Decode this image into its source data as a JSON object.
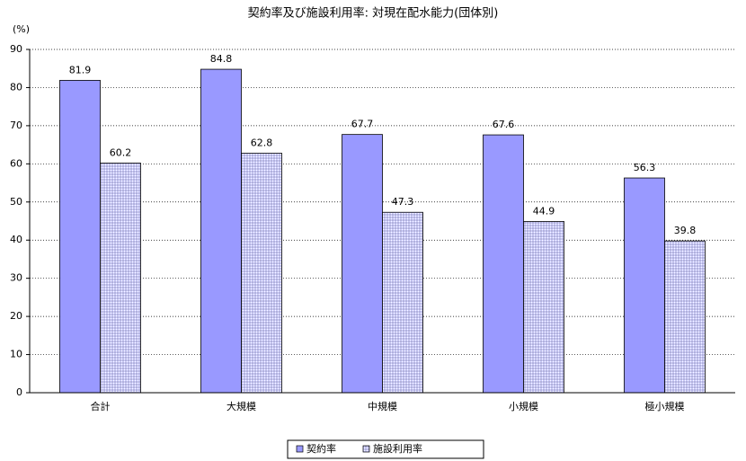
{
  "chart_data": {
    "type": "bar",
    "title": "契約率及び施設利用率: 対現在配水能力(団体別)",
    "y_label": "(%)",
    "categories": [
      "合計",
      "大規模",
      "中規模",
      "小規模",
      "極小規模"
    ],
    "series": [
      {
        "name": "契約率",
        "color": "#9999ff",
        "values": [
          81.9,
          84.8,
          67.7,
          67.6,
          56.3
        ]
      },
      {
        "name": "施設利用率",
        "color": "#ccccff",
        "pattern": "dots",
        "values": [
          60.2,
          62.8,
          47.3,
          44.9,
          39.8
        ]
      }
    ],
    "ylim": [
      0,
      90
    ],
    "yticks": [
      0,
      10,
      20,
      30,
      40,
      50,
      60,
      70,
      80,
      90
    ],
    "grid": true,
    "legend": "bottom"
  }
}
